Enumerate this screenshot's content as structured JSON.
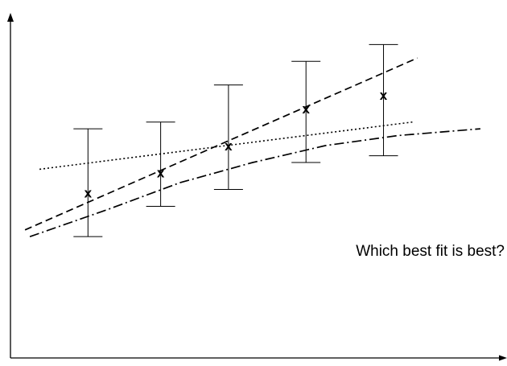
{
  "chart_data": {
    "type": "scatter",
    "title": "",
    "xlabel": "",
    "ylabel": "",
    "grid": false,
    "axis_ticks": false,
    "xlim": [
      0,
      10
    ],
    "ylim": [
      0,
      10
    ],
    "marker": "x",
    "points": [
      {
        "x": 1.6,
        "y": 4.9,
        "err_low": 3.6,
        "err_high": 6.8
      },
      {
        "x": 3.1,
        "y": 5.5,
        "err_low": 4.5,
        "err_high": 7.0
      },
      {
        "x": 4.5,
        "y": 6.3,
        "err_low": 5.0,
        "err_high": 8.1
      },
      {
        "x": 6.1,
        "y": 7.4,
        "err_low": 5.8,
        "err_high": 8.8
      },
      {
        "x": 7.7,
        "y": 7.8,
        "err_low": 6.0,
        "err_high": 9.3
      }
    ],
    "fits": [
      {
        "style": "dashed",
        "x": [
          0.3,
          8.4
        ],
        "y": [
          3.8,
          8.9
        ]
      },
      {
        "style": "dotted",
        "x": [
          0.6,
          8.3
        ],
        "y": [
          5.6,
          7.0
        ]
      },
      {
        "style": "dash-dot",
        "x": [
          0.4,
          2.0,
          3.5,
          5.0,
          6.5,
          8.0,
          9.7
        ],
        "y": [
          3.6,
          4.4,
          5.2,
          5.8,
          6.3,
          6.6,
          6.8
        ]
      }
    ],
    "annotation": "Which best fit is best?"
  },
  "colors": {
    "ink": "#000000",
    "background": "#ffffff"
  }
}
